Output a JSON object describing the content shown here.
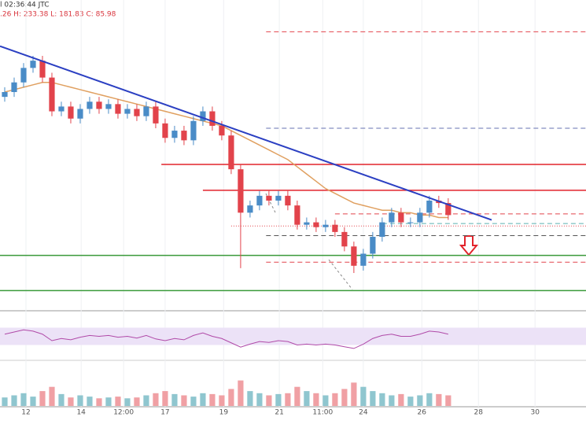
{
  "chart_data": {
    "type": "candlestick",
    "title": "l 02:36:44 JTC",
    "ohlc_label": ".26 H: 233.38 L: 181.83 C: 85.98",
    "xlim": [
      -0.5,
      61.6
    ],
    "ylim": [
      150,
      270
    ],
    "xticks": [
      {
        "value": 2.25,
        "label": "12"
      },
      {
        "value": 8.1,
        "label": "14"
      },
      {
        "value": 12.6,
        "label": "12:00"
      },
      {
        "value": 17,
        "label": "17"
      },
      {
        "value": 23.2,
        "label": "19"
      },
      {
        "value": 29.1,
        "label": "21"
      },
      {
        "value": 33.7,
        "label": "11:00"
      },
      {
        "value": 38,
        "label": "24"
      },
      {
        "value": 44.2,
        "label": "26"
      },
      {
        "value": 50.2,
        "label": "28"
      },
      {
        "value": 56.2,
        "label": "30"
      }
    ],
    "up_color": "#4a8cc7",
    "down_color": "#e2434b",
    "open": [
      238,
      240,
      244,
      250,
      253,
      246,
      232,
      234,
      229,
      233,
      236,
      233,
      235,
      231,
      233,
      230,
      234,
      227,
      221,
      224,
      220,
      228,
      232,
      226,
      222,
      208,
      190,
      193,
      197,
      195,
      197,
      193,
      185,
      186,
      184,
      185,
      182,
      176,
      168,
      173,
      180,
      186,
      190,
      186,
      186,
      190,
      195,
      194
    ],
    "high": [
      242,
      246,
      252,
      255,
      255,
      248,
      236,
      236,
      235,
      238,
      238,
      237,
      237,
      235,
      235,
      236,
      236,
      229,
      226,
      226,
      230,
      234,
      234,
      228,
      224,
      210,
      195,
      199,
      199,
      199,
      199,
      195,
      188,
      188,
      187,
      187,
      184,
      178,
      175,
      182,
      188,
      192,
      192,
      188,
      192,
      197,
      197,
      196
    ],
    "low": [
      236,
      238,
      242,
      248,
      244,
      230,
      230,
      227,
      227,
      231,
      231,
      231,
      229,
      229,
      228,
      228,
      225,
      219,
      219,
      218,
      218,
      226,
      224,
      220,
      206,
      167,
      188,
      191,
      193,
      193,
      191,
      183,
      183,
      182,
      182,
      180,
      174,
      165,
      166,
      171,
      178,
      184,
      184,
      184,
      184,
      188,
      192,
      187
    ],
    "close": [
      240,
      244,
      250,
      253,
      246,
      232,
      234,
      229,
      233,
      236,
      233,
      235,
      231,
      233,
      230,
      234,
      227,
      221,
      224,
      220,
      228,
      232,
      226,
      222,
      208,
      190,
      193,
      197,
      195,
      197,
      193,
      185,
      186,
      184,
      185,
      182,
      176,
      168,
      173,
      180,
      186,
      190,
      186,
      186,
      190,
      195,
      194,
      189
    ],
    "moving_average": {
      "color": "#e0a060",
      "values": [
        240,
        241,
        242,
        243,
        244,
        244,
        243,
        242,
        241,
        240,
        239,
        238,
        237,
        236,
        235,
        234,
        233,
        232,
        231,
        230,
        229,
        228,
        227,
        226,
        224,
        222,
        220,
        218,
        216,
        214,
        212,
        209,
        206,
        203,
        200,
        198,
        196,
        194,
        193,
        192,
        191,
        191,
        190,
        190,
        189,
        189,
        188,
        188
      ]
    },
    "trendline": {
      "color": "#2b3fc2",
      "x": [
        -0.5,
        51.6
      ],
      "y": [
        259,
        187
      ]
    },
    "levels": [
      {
        "value": 210,
        "from": 16.6,
        "color": "#e2232b",
        "style": "solid"
      },
      {
        "value": 199.3,
        "from": 21,
        "color": "#e2232b",
        "style": "solid"
      },
      {
        "value": 172.3,
        "from": -0.5,
        "color": "#3a9a3a",
        "style": "solid"
      },
      {
        "value": 157.7,
        "from": -0.5,
        "color": "#3a9a3a",
        "style": "solid"
      },
      {
        "value": 265,
        "from": 27.7,
        "color": "#e2434b",
        "style": "dashed"
      },
      {
        "value": 225,
        "from": 27.7,
        "color": "#6670b0",
        "style": "dashed"
      },
      {
        "value": 189.5,
        "from": 35,
        "color": "#e2434b",
        "style": "dashed"
      },
      {
        "value": 184.5,
        "from": 24,
        "color": "#e2434b",
        "style": "dotted"
      },
      {
        "value": 185.5,
        "from": 40,
        "color": "#5bb0b0",
        "style": "dashed"
      },
      {
        "value": 180.5,
        "from": 27.7,
        "color": "#555555",
        "style": "dashed"
      },
      {
        "value": 169.5,
        "from": 27.7,
        "color": "#e2434b",
        "style": "dashed"
      }
    ],
    "rsi": {
      "color": "#b04aa8",
      "ylim": [
        0,
        100
      ],
      "band": [
        30,
        70
      ],
      "band_color": "#ece2f7",
      "values": [
        55,
        60,
        65,
        62,
        55,
        40,
        45,
        42,
        48,
        52,
        50,
        52,
        48,
        50,
        46,
        52,
        44,
        40,
        45,
        42,
        52,
        58,
        50,
        45,
        35,
        25,
        32,
        38,
        36,
        40,
        38,
        30,
        32,
        30,
        32,
        30,
        26,
        22,
        32,
        45,
        52,
        55,
        50,
        50,
        55,
        62,
        60,
        55
      ]
    },
    "volume": {
      "ylim": [
        0,
        100
      ],
      "up_color": "#8fc6cf",
      "down_color": "#f0a0a4",
      "values": [
        20,
        25,
        30,
        22,
        35,
        45,
        28,
        20,
        25,
        22,
        18,
        20,
        22,
        18,
        20,
        25,
        30,
        35,
        28,
        25,
        22,
        30,
        28,
        25,
        40,
        60,
        35,
        30,
        25,
        28,
        30,
        45,
        35,
        30,
        25,
        30,
        40,
        55,
        45,
        35,
        30,
        25,
        28,
        22,
        25,
        30,
        28,
        25
      ]
    }
  }
}
